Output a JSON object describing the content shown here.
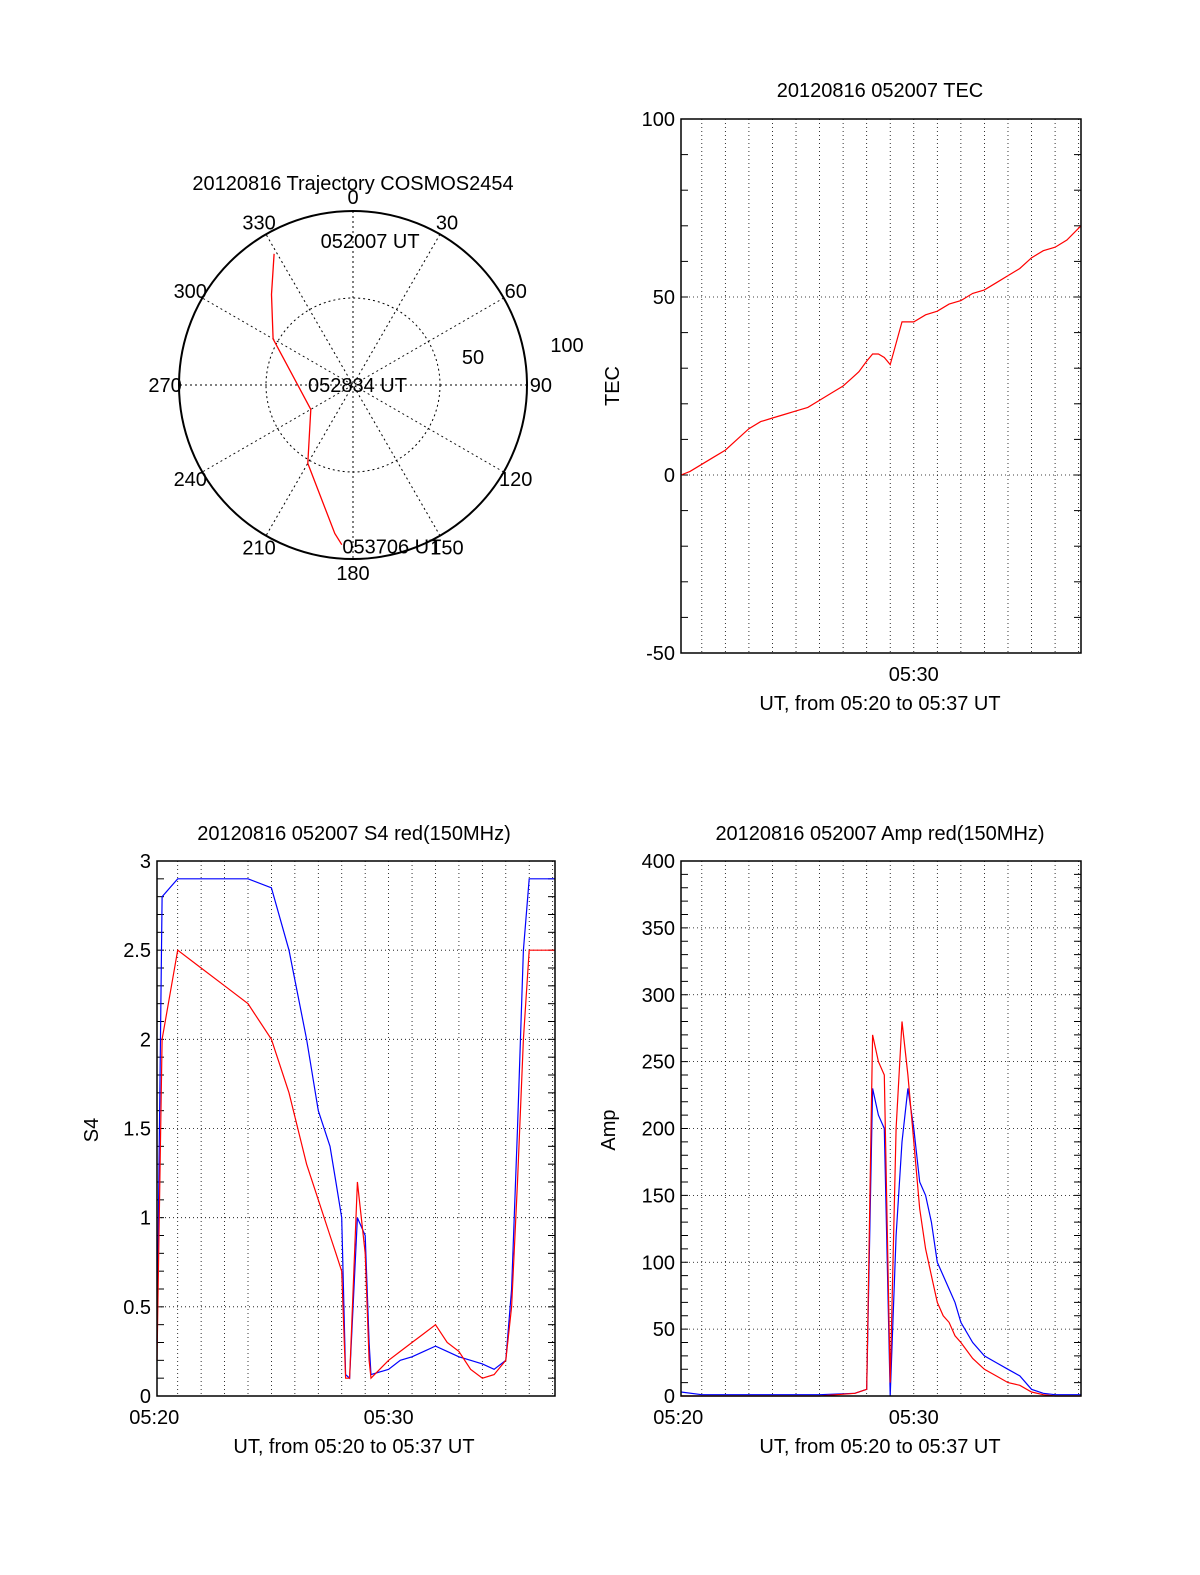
{
  "chart_data": [
    {
      "type": "polar-trajectory",
      "title": "20120816 Trajectory COSMOS2454",
      "azimuth_labels": [
        "0",
        "30",
        "60",
        "90",
        "120",
        "150",
        "180",
        "210",
        "240",
        "270",
        "300",
        "330"
      ],
      "radial_labels": [
        "50",
        "100"
      ],
      "rlim": [
        0,
        100
      ],
      "trajectory": [
        {
          "az": 329,
          "r": 88
        },
        {
          "az": 318,
          "r": 70
        },
        {
          "az": 300,
          "r": 53
        },
        {
          "az": 240,
          "r": 28
        },
        {
          "az": 210,
          "r": 52
        },
        {
          "az": 187,
          "r": 86
        },
        {
          "az": 184,
          "r": 92
        }
      ],
      "annotations": [
        {
          "text": "052007 UT",
          "az": 5,
          "r": 83
        },
        {
          "text": "052834 UT",
          "az": 0,
          "r": 0
        },
        {
          "text": "053706 UT",
          "az": 168,
          "r": 95
        }
      ],
      "series_color": "#ff0000",
      "grid": true
    },
    {
      "type": "line",
      "title": "20120816 052007 TEC",
      "xlabel": "UT, from 05:20 to 05:37 UT",
      "ylabel": "TEC",
      "xlim": [
        "05:20:07",
        "05:37:06"
      ],
      "ylim": [
        -50,
        100
      ],
      "xticks": [
        "05:30"
      ],
      "yticks": [
        -50,
        0,
        50,
        100
      ],
      "grid": true,
      "series": [
        {
          "color": "#ff0000",
          "x": [
            "05:20:07",
            "05:20:30",
            "05:21:00",
            "05:21:30",
            "05:22:00",
            "05:22:30",
            "05:23:00",
            "05:23:30",
            "05:24:00",
            "05:24:30",
            "05:25:00",
            "05:25:30",
            "05:26:00",
            "05:26:30",
            "05:27:00",
            "05:27:20",
            "05:27:40",
            "05:28:00",
            "05:28:15",
            "05:28:30",
            "05:28:45",
            "05:29:00",
            "05:29:30",
            "05:30:00",
            "05:30:30",
            "05:31:00",
            "05:31:30",
            "05:32:00",
            "05:32:30",
            "05:33:00",
            "05:33:30",
            "05:34:00",
            "05:34:30",
            "05:35:00",
            "05:35:30",
            "05:36:00",
            "05:36:30",
            "05:37:06"
          ],
          "y": [
            0,
            1,
            3,
            5,
            7,
            10,
            13,
            15,
            16,
            17,
            18,
            19,
            21,
            23,
            25,
            27,
            29,
            32,
            34,
            34,
            33,
            31,
            43,
            43,
            45,
            46,
            48,
            49,
            51,
            52,
            54,
            56,
            58,
            61,
            63,
            64,
            66,
            70
          ]
        }
      ]
    },
    {
      "type": "line",
      "title": "20120816 052007 S4 red(150MHz)",
      "xlabel": "UT, from 05:20 to 05:37 UT",
      "ylabel": "S4",
      "xlim": [
        "05:20:07",
        "05:37:06"
      ],
      "ylim": [
        0,
        3
      ],
      "xticks": [
        "05:20",
        "05:30"
      ],
      "yticks": [
        "0",
        "0.5",
        "1",
        "1.5",
        "2",
        "2.5",
        "3"
      ],
      "grid": true,
      "series": [
        {
          "color": "#0000ff",
          "x": [
            "05:20:07",
            "05:20:20",
            "05:21:00",
            "05:22:00",
            "05:23:00",
            "05:24:00",
            "05:25:00",
            "05:25:45",
            "05:26:30",
            "05:27:00",
            "05:27:30",
            "05:27:45",
            "05:28:00",
            "05:28:10",
            "05:28:20",
            "05:28:40",
            "05:29:00",
            "05:29:10",
            "05:29:15",
            "05:30:00",
            "05:30:30",
            "05:31:00",
            "05:31:30",
            "05:32:00",
            "05:32:30",
            "05:33:00",
            "05:33:30",
            "05:34:00",
            "05:34:30",
            "05:35:00",
            "05:35:15",
            "05:35:30",
            "05:35:45",
            "05:36:00",
            "05:37:06"
          ],
          "y": [
            0.3,
            2.8,
            2.9,
            2.9,
            2.9,
            2.9,
            2.85,
            2.5,
            2.0,
            1.6,
            1.4,
            1.2,
            1.0,
            0.12,
            0.1,
            1.0,
            0.9,
            0.3,
            0.12,
            0.15,
            0.2,
            0.22,
            0.25,
            0.28,
            0.25,
            0.22,
            0.2,
            0.18,
            0.15,
            0.2,
            0.6,
            1.5,
            2.5,
            2.9,
            2.9
          ]
        },
        {
          "color": "#ff0000",
          "x": [
            "05:20:07",
            "05:20:20",
            "05:21:00",
            "05:22:00",
            "05:23:00",
            "05:24:00",
            "05:25:00",
            "05:25:45",
            "05:26:30",
            "05:27:00",
            "05:27:30",
            "05:27:45",
            "05:28:00",
            "05:28:10",
            "05:28:20",
            "05:28:40",
            "05:29:00",
            "05:29:10",
            "05:29:15",
            "05:30:00",
            "05:30:30",
            "05:31:00",
            "05:31:30",
            "05:32:00",
            "05:32:30",
            "05:33:00",
            "05:33:30",
            "05:34:00",
            "05:34:30",
            "05:35:00",
            "05:35:15",
            "05:35:30",
            "05:35:45",
            "05:36:00",
            "05:37:06"
          ],
          "y": [
            0.2,
            2.0,
            2.5,
            2.4,
            2.3,
            2.2,
            2.0,
            1.7,
            1.3,
            1.1,
            0.9,
            0.8,
            0.7,
            0.1,
            0.1,
            1.2,
            0.8,
            0.2,
            0.1,
            0.2,
            0.25,
            0.3,
            0.35,
            0.4,
            0.3,
            0.25,
            0.15,
            0.1,
            0.12,
            0.2,
            0.5,
            1.2,
            2.0,
            2.5,
            2.5
          ]
        }
      ]
    },
    {
      "type": "line",
      "title": "20120816 052007 Amp red(150MHz)",
      "xlabel": "UT, from 05:20 to 05:37 UT",
      "ylabel": "Amp",
      "xlim": [
        "05:20:07",
        "05:37:06"
      ],
      "ylim": [
        0,
        400
      ],
      "xticks": [
        "05:20",
        "05:30"
      ],
      "yticks": [
        0,
        50,
        100,
        150,
        200,
        250,
        300,
        350,
        400
      ],
      "grid": true,
      "series": [
        {
          "color": "#0000ff",
          "x": [
            "05:20:07",
            "05:21:00",
            "05:23:00",
            "05:26:00",
            "05:27:30",
            "05:28:00",
            "05:28:15",
            "05:28:30",
            "05:28:45",
            "05:29:00",
            "05:29:15",
            "05:29:30",
            "05:29:45",
            "05:30:00",
            "05:30:15",
            "05:30:30",
            "05:30:45",
            "05:31:00",
            "05:31:15",
            "05:31:30",
            "05:31:45",
            "05:32:00",
            "05:32:30",
            "05:33:00",
            "05:33:30",
            "05:34:00",
            "05:34:30",
            "05:35:00",
            "05:35:30",
            "05:36:00",
            "05:37:06"
          ],
          "y": [
            3,
            1,
            1,
            1,
            2,
            5,
            230,
            210,
            200,
            0,
            120,
            190,
            230,
            200,
            160,
            150,
            130,
            100,
            90,
            80,
            70,
            55,
            40,
            30,
            25,
            20,
            15,
            5,
            2,
            1,
            1
          ]
        },
        {
          "color": "#ff0000",
          "x": [
            "05:20:07",
            "05:21:00",
            "05:23:00",
            "05:26:00",
            "05:27:30",
            "05:28:00",
            "05:28:15",
            "05:28:30",
            "05:28:45",
            "05:29:00",
            "05:29:15",
            "05:29:30",
            "05:29:45",
            "05:30:00",
            "05:30:15",
            "05:30:30",
            "05:30:45",
            "05:31:00",
            "05:31:15",
            "05:31:30",
            "05:31:45",
            "05:32:00",
            "05:32:30",
            "05:33:00",
            "05:33:30",
            "05:34:00",
            "05:34:30",
            "05:35:00",
            "05:35:30",
            "05:36:00",
            "05:37:06"
          ],
          "y": [
            0,
            0,
            0,
            0,
            2,
            5,
            270,
            250,
            240,
            10,
            200,
            280,
            240,
            190,
            140,
            110,
            90,
            70,
            60,
            55,
            45,
            40,
            28,
            20,
            15,
            10,
            8,
            3,
            1,
            0,
            0
          ]
        }
      ]
    }
  ]
}
